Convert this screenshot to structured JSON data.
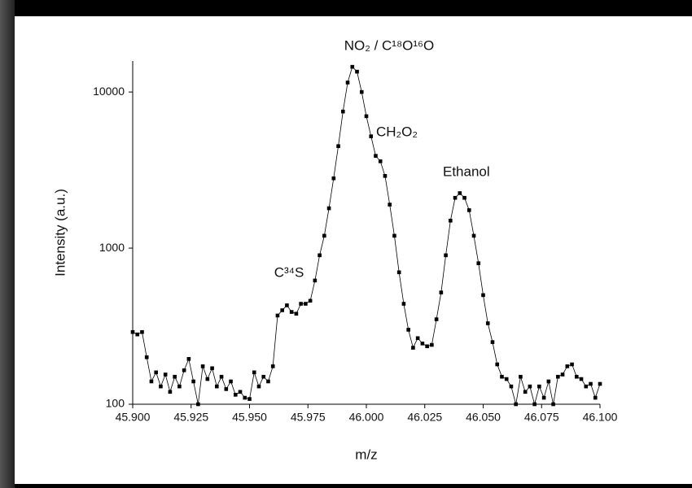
{
  "chart_data": {
    "type": "line",
    "x_label": "m/z",
    "y_label": "Intensity (a.u.)",
    "annotations": [
      "NO₂ / C¹⁸O¹⁶O",
      "CH₂O₂",
      "Ethanol",
      "C³⁴S"
    ],
    "x": [
      45.9,
      45.902,
      45.904,
      45.906,
      45.908,
      45.91,
      45.912,
      45.914,
      45.916,
      45.918,
      45.92,
      45.922,
      45.924,
      45.926,
      45.928,
      45.93,
      45.932,
      45.934,
      45.936,
      45.938,
      45.94,
      45.942,
      45.944,
      45.946,
      45.948,
      45.95,
      45.952,
      45.954,
      45.956,
      45.958,
      45.96,
      45.962,
      45.964,
      45.966,
      45.968,
      45.97,
      45.972,
      45.974,
      45.976,
      45.978,
      45.98,
      45.982,
      45.984,
      45.986,
      45.988,
      45.99,
      45.992,
      45.994,
      45.996,
      45.998,
      46.0,
      46.002,
      46.004,
      46.006,
      46.008,
      46.01,
      46.012,
      46.014,
      46.016,
      46.018,
      46.02,
      46.022,
      46.024,
      46.026,
      46.028,
      46.03,
      46.032,
      46.034,
      46.036,
      46.038,
      46.04,
      46.042,
      46.044,
      46.046,
      46.048,
      46.05,
      46.052,
      46.054,
      46.056,
      46.058,
      46.06,
      46.062,
      46.064,
      46.066,
      46.068,
      46.07,
      46.072,
      46.074,
      46.076,
      46.078,
      46.08,
      46.082,
      46.084,
      46.086,
      46.088,
      46.09,
      46.092,
      46.094,
      46.096,
      46.098,
      46.1
    ],
    "series": [
      {
        "color": "#000000",
        "values": [
          290,
          280,
          290,
          200,
          140,
          160,
          130,
          155,
          120,
          150,
          130,
          165,
          195,
          140,
          100,
          175,
          145,
          170,
          130,
          150,
          125,
          140,
          115,
          120,
          110,
          108,
          160,
          130,
          150,
          140,
          175,
          370,
          400,
          430,
          390,
          380,
          440,
          440,
          460,
          620,
          900,
          1200,
          1800,
          2800,
          4500,
          7500,
          11500,
          14500,
          13500,
          10000,
          7000,
          5200,
          3900,
          3600,
          2900,
          1900,
          1200,
          700,
          440,
          300,
          230,
          265,
          245,
          235,
          240,
          350,
          520,
          900,
          1500,
          2100,
          2250,
          2100,
          1750,
          1200,
          800,
          500,
          330,
          250,
          180,
          150,
          145,
          130,
          100,
          150,
          120,
          130,
          100,
          130,
          110,
          140,
          100,
          150,
          155,
          175,
          180,
          150,
          145,
          130,
          135,
          110,
          135
        ]
      }
    ],
    "xlim": [
      45.9,
      46.1
    ],
    "xticks": [
      {
        "value": 45.9,
        "label": "45.900"
      },
      {
        "value": 45.925,
        "label": "45.925"
      },
      {
        "value": 45.95,
        "label": "45.950"
      },
      {
        "value": 45.975,
        "label": "45.975"
      },
      {
        "value": 46.0,
        "label": "46.000"
      },
      {
        "value": 46.025,
        "label": "46.025"
      },
      {
        "value": 46.05,
        "label": "46.050"
      },
      {
        "value": 46.075,
        "label": "46.075"
      },
      {
        "value": 46.1,
        "label": "46.100"
      }
    ],
    "ylim": [
      100,
      15800
    ],
    "yticks": [
      100,
      1000,
      10000
    ],
    "y_scale": "log",
    "grid": false
  }
}
